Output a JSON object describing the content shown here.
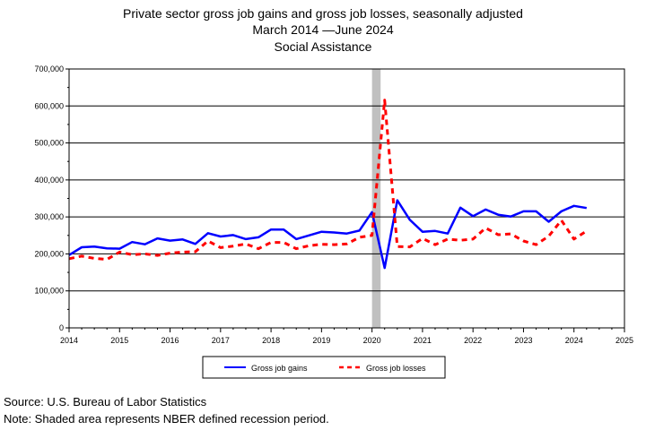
{
  "chart_data": {
    "type": "line",
    "title_lines": [
      "Private sector gross job gains and gross job losses, seasonally adjusted",
      "March 2014 —June 2024",
      "Social Assistance"
    ],
    "xlabel": "",
    "ylabel": "",
    "xlim": [
      2014,
      2025
    ],
    "ylim": [
      0,
      700000
    ],
    "x_ticks": [
      "2014",
      "2015",
      "2016",
      "2017",
      "2018",
      "2019",
      "2020",
      "2021",
      "2022",
      "2023",
      "2024",
      "2025"
    ],
    "y_ticks": [
      "0",
      "100,000",
      "200,000",
      "300,000",
      "400,000",
      "500,000",
      "600,000",
      "700,000"
    ],
    "grid": "horizontal",
    "legend_position": "bottom",
    "recession_shading": {
      "start": 2020.0,
      "end": 2020.17,
      "color": "#c0c0c0"
    },
    "series": [
      {
        "name": "Gross job gains",
        "color": "#0000ff",
        "style": "solid",
        "x": [
          2014.0,
          2014.25,
          2014.5,
          2014.75,
          2015.0,
          2015.25,
          2015.5,
          2015.75,
          2016.0,
          2016.25,
          2016.5,
          2016.75,
          2017.0,
          2017.25,
          2017.5,
          2017.75,
          2018.0,
          2018.25,
          2018.5,
          2018.75,
          2019.0,
          2019.25,
          2019.5,
          2019.75,
          2020.0,
          2020.25,
          2020.5,
          2020.75,
          2021.0,
          2021.25,
          2021.5,
          2021.75,
          2022.0,
          2022.25,
          2022.5,
          2022.75,
          2023.0,
          2023.25,
          2023.5,
          2023.75,
          2024.0,
          2024.25
        ],
        "values": [
          197000,
          218000,
          220000,
          215000,
          214000,
          232000,
          226000,
          242000,
          236000,
          239000,
          227000,
          256000,
          247000,
          251000,
          240000,
          245000,
          266000,
          266000,
          240000,
          250000,
          260000,
          258000,
          255000,
          263000,
          313000,
          162000,
          345000,
          292000,
          260000,
          262000,
          255000,
          325000,
          302000,
          320000,
          306000,
          301000,
          315000,
          315000,
          287000,
          315000,
          330000,
          324000
        ]
      },
      {
        "name": "Gross job losses",
        "color": "#ff0000",
        "style": "dashed",
        "x": [
          2014.0,
          2014.25,
          2014.5,
          2014.75,
          2015.0,
          2015.25,
          2015.5,
          2015.75,
          2016.0,
          2016.25,
          2016.5,
          2016.75,
          2017.0,
          2017.25,
          2017.5,
          2017.75,
          2018.0,
          2018.25,
          2018.5,
          2018.75,
          2019.0,
          2019.25,
          2019.5,
          2019.75,
          2020.0,
          2020.25,
          2020.5,
          2020.75,
          2021.0,
          2021.25,
          2021.5,
          2021.75,
          2022.0,
          2022.25,
          2022.5,
          2022.75,
          2023.0,
          2023.25,
          2023.5,
          2023.75,
          2024.0,
          2024.25
        ],
        "values": [
          187000,
          194000,
          188000,
          185000,
          205000,
          198000,
          200000,
          196000,
          202000,
          205000,
          206000,
          235000,
          217000,
          221000,
          227000,
          214000,
          231000,
          231000,
          214000,
          222000,
          226000,
          225000,
          227000,
          245000,
          250000,
          616000,
          220000,
          219000,
          242000,
          225000,
          240000,
          237000,
          240000,
          270000,
          252000,
          254000,
          235000,
          225000,
          248000,
          291000,
          240000,
          262000
        ]
      }
    ]
  },
  "footer": {
    "source": "Source: U.S. Bureau of Labor Statistics",
    "note": "Note: Shaded area represents NBER defined recession period."
  }
}
